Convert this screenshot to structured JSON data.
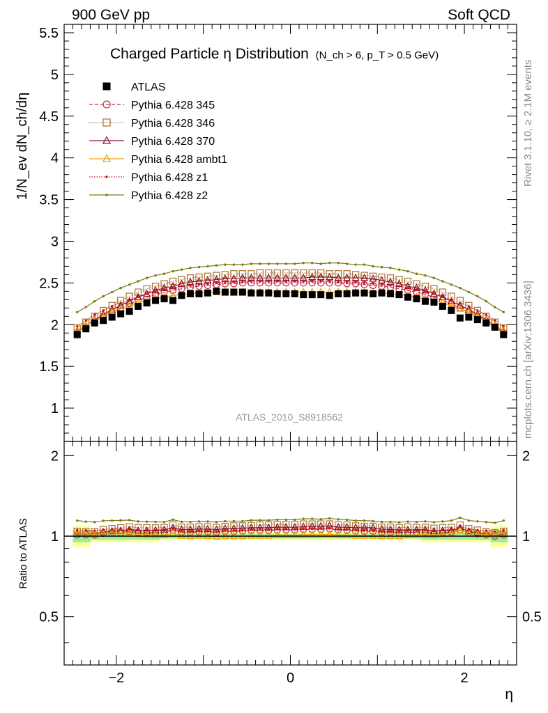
{
  "header": {
    "left": "900 GeV pp",
    "right": "Soft QCD"
  },
  "side": {
    "rivet": "Rivet 3.1.10, ≥ 2.1M events",
    "mcplots": "mcplots.cern.ch [arXiv:1306.3436]"
  },
  "chart_data": [
    {
      "type": "scatter",
      "title": "Charged Particle η Distribution",
      "title_cuts": "(N_ch > 6, p_T > 0.5 GeV)",
      "ylabel": "1/N_ev dN_ch/dη",
      "xlim": [
        -2.6,
        2.6
      ],
      "ylim": [
        0.6,
        5.6
      ],
      "yticks": [
        1,
        1.5,
        2,
        2.5,
        3,
        3.5,
        4,
        4.5,
        5,
        5.5
      ],
      "ytick_labels": [
        "1",
        "1.5",
        "2",
        "2.5",
        "3",
        "3.5",
        "4",
        "4.5",
        "5",
        "5.5"
      ],
      "annotation": "ATLAS_2010_S8918562",
      "legend_placement": "top-left",
      "x": [
        -2.45,
        -2.35,
        -2.25,
        -2.15,
        -2.05,
        -1.95,
        -1.85,
        -1.75,
        -1.65,
        -1.55,
        -1.45,
        -1.35,
        -1.25,
        -1.15,
        -1.05,
        -0.95,
        -0.85,
        -0.75,
        -0.65,
        -0.55,
        -0.45,
        -0.35,
        -0.25,
        -0.15,
        -0.05,
        0.05,
        0.15,
        0.25,
        0.35,
        0.45,
        0.55,
        0.65,
        0.75,
        0.85,
        0.95,
        1.05,
        1.15,
        1.25,
        1.35,
        1.45,
        1.55,
        1.65,
        1.75,
        1.85,
        1.95,
        2.05,
        2.15,
        2.25,
        2.35,
        2.45
      ],
      "series": [
        {
          "name": "ATLAS",
          "color": "#000000",
          "marker": "filled-square",
          "line": "none",
          "values": [
            1.88,
            1.95,
            2.02,
            2.05,
            2.09,
            2.13,
            2.16,
            2.22,
            2.26,
            2.29,
            2.31,
            2.29,
            2.35,
            2.37,
            2.37,
            2.38,
            2.4,
            2.39,
            2.39,
            2.39,
            2.38,
            2.38,
            2.38,
            2.37,
            2.37,
            2.37,
            2.36,
            2.36,
            2.36,
            2.35,
            2.37,
            2.37,
            2.38,
            2.38,
            2.37,
            2.38,
            2.37,
            2.36,
            2.33,
            2.31,
            2.28,
            2.27,
            2.22,
            2.17,
            2.08,
            2.09,
            2.06,
            2.02,
            1.97,
            1.88
          ]
        },
        {
          "name": "Pythia 6.428 345",
          "color": "#c0304a",
          "marker": "open-circle",
          "line": "dashed",
          "values": [
            1.9,
            1.97,
            2.04,
            2.1,
            2.15,
            2.2,
            2.25,
            2.29,
            2.33,
            2.36,
            2.39,
            2.41,
            2.43,
            2.45,
            2.46,
            2.47,
            2.48,
            2.49,
            2.49,
            2.5,
            2.5,
            2.5,
            2.5,
            2.5,
            2.5,
            2.5,
            2.5,
            2.5,
            2.5,
            2.5,
            2.5,
            2.49,
            2.49,
            2.48,
            2.47,
            2.46,
            2.45,
            2.43,
            2.41,
            2.39,
            2.36,
            2.33,
            2.29,
            2.25,
            2.2,
            2.15,
            2.1,
            2.04,
            1.97,
            1.9
          ]
        },
        {
          "name": "Pythia 6.428 346",
          "color": "#b07a3c",
          "marker": "open-square",
          "line": "dotted",
          "values": [
            1.96,
            2.03,
            2.1,
            2.17,
            2.23,
            2.29,
            2.34,
            2.39,
            2.43,
            2.46,
            2.49,
            2.52,
            2.54,
            2.56,
            2.57,
            2.58,
            2.59,
            2.6,
            2.61,
            2.61,
            2.61,
            2.62,
            2.62,
            2.62,
            2.62,
            2.62,
            2.62,
            2.62,
            2.62,
            2.61,
            2.61,
            2.61,
            2.6,
            2.59,
            2.58,
            2.57,
            2.56,
            2.54,
            2.52,
            2.49,
            2.46,
            2.43,
            2.39,
            2.34,
            2.29,
            2.23,
            2.17,
            2.1,
            2.03,
            1.96
          ]
        },
        {
          "name": "Pythia 6.428 370",
          "color": "#8b1530",
          "marker": "open-triangle",
          "line": "solid",
          "values": [
            1.92,
            1.99,
            2.06,
            2.12,
            2.18,
            2.23,
            2.28,
            2.33,
            2.37,
            2.41,
            2.44,
            2.46,
            2.49,
            2.51,
            2.52,
            2.53,
            2.54,
            2.55,
            2.55,
            2.56,
            2.56,
            2.56,
            2.56,
            2.56,
            2.56,
            2.56,
            2.56,
            2.57,
            2.57,
            2.57,
            2.56,
            2.56,
            2.56,
            2.56,
            2.55,
            2.53,
            2.51,
            2.49,
            2.46,
            2.44,
            2.41,
            2.37,
            2.33,
            2.28,
            2.23,
            2.18,
            2.12,
            2.06,
            1.99,
            1.92
          ]
        },
        {
          "name": "Pythia 6.428 ambt1",
          "color": "#f0a000",
          "marker": "open-triangle",
          "line": "solid",
          "values": [
            1.93,
            1.99,
            2.05,
            2.1,
            2.15,
            2.19,
            2.23,
            2.26,
            2.29,
            2.31,
            2.33,
            2.35,
            2.36,
            2.37,
            2.38,
            2.38,
            2.39,
            2.39,
            2.39,
            2.39,
            2.39,
            2.39,
            2.39,
            2.39,
            2.39,
            2.39,
            2.39,
            2.39,
            2.39,
            2.39,
            2.39,
            2.39,
            2.39,
            2.39,
            2.38,
            2.38,
            2.37,
            2.36,
            2.35,
            2.33,
            2.31,
            2.29,
            2.26,
            2.23,
            2.19,
            2.15,
            2.1,
            2.05,
            1.99,
            1.93
          ]
        },
        {
          "name": "Pythia 6.428 z1",
          "color": "#d01010",
          "marker": "dot",
          "line": "dotted",
          "values": [
            1.98,
            2.05,
            2.12,
            2.17,
            2.22,
            2.26,
            2.3,
            2.34,
            2.37,
            2.4,
            2.42,
            2.44,
            2.46,
            2.47,
            2.48,
            2.49,
            2.5,
            2.51,
            2.51,
            2.51,
            2.52,
            2.52,
            2.52,
            2.52,
            2.52,
            2.52,
            2.52,
            2.52,
            2.52,
            2.52,
            2.51,
            2.51,
            2.51,
            2.5,
            2.49,
            2.48,
            2.47,
            2.46,
            2.44,
            2.42,
            2.4,
            2.37,
            2.34,
            2.3,
            2.26,
            2.22,
            2.17,
            2.12,
            2.05,
            1.98
          ]
        },
        {
          "name": "Pythia 6.428 z2",
          "color": "#7a7a10",
          "marker": "dot",
          "line": "solid",
          "values": [
            2.15,
            2.21,
            2.28,
            2.34,
            2.39,
            2.44,
            2.48,
            2.52,
            2.56,
            2.59,
            2.61,
            2.64,
            2.66,
            2.68,
            2.69,
            2.7,
            2.71,
            2.72,
            2.72,
            2.72,
            2.73,
            2.73,
            2.73,
            2.73,
            2.73,
            2.73,
            2.74,
            2.74,
            2.73,
            2.74,
            2.74,
            2.73,
            2.72,
            2.72,
            2.7,
            2.69,
            2.68,
            2.66,
            2.64,
            2.61,
            2.59,
            2.56,
            2.52,
            2.48,
            2.44,
            2.39,
            2.34,
            2.28,
            2.21,
            2.15
          ]
        }
      ]
    },
    {
      "type": "scatter",
      "ylabel": "Ratio to ATLAS",
      "xlabel": "η",
      "xlim": [
        -2.6,
        2.6
      ],
      "ylim": [
        0.33,
        2.26
      ],
      "yticks": [
        0.5,
        1,
        2
      ],
      "ytick_labels": [
        "0.5",
        "1",
        "2"
      ],
      "xticks": [
        -2,
        0,
        2
      ],
      "xtick_labels": [
        "−2",
        "0",
        "2"
      ],
      "reference_line": 1,
      "uncertainty_bands": {
        "x_edges": [
          -2.5,
          -2.3,
          -1.9,
          -1.5,
          1.5,
          1.9,
          2.3,
          2.5
        ],
        "yellow_halfwidth": [
          0.09,
          0.05,
          0.05,
          0.035,
          0.05,
          0.05,
          0.09
        ],
        "green_halfwidth": [
          0.05,
          0.03,
          0.03,
          0.02,
          0.03,
          0.03,
          0.05
        ]
      }
    }
  ]
}
